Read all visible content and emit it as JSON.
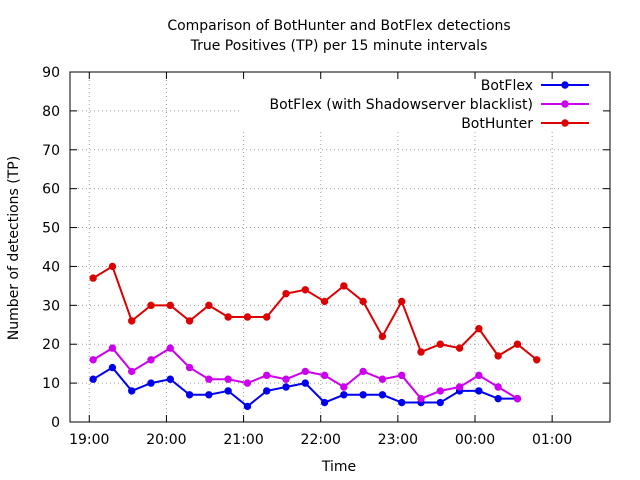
{
  "chart_data": {
    "type": "line",
    "title": "Comparison of BotHunter and BotFlex detections",
    "subtitle": "True Positives (TP) per 15 minute intervals",
    "xlabel": "Time",
    "ylabel": "Number of detections (TP)",
    "ylim": [
      0,
      90
    ],
    "yticks": [
      0,
      10,
      20,
      30,
      40,
      50,
      60,
      70,
      80,
      90
    ],
    "xticks": [
      "19:00",
      "20:00",
      "21:00",
      "22:00",
      "23:00",
      "00:00",
      "01:00"
    ],
    "grid": true,
    "legend": "top-right",
    "x": [
      "19:03",
      "19:18",
      "19:33",
      "19:48",
      "20:03",
      "20:18",
      "20:33",
      "20:48",
      "21:03",
      "21:18",
      "21:33",
      "21:48",
      "22:03",
      "22:18",
      "22:33",
      "22:48",
      "23:03",
      "23:18",
      "23:33",
      "23:48",
      "00:03",
      "00:18",
      "00:33",
      "00:48"
    ],
    "series": [
      {
        "name": "BotFlex",
        "color": "#0000ee",
        "values": [
          11,
          14,
          8,
          10,
          11,
          7,
          7,
          8,
          4,
          8,
          9,
          10,
          5,
          7,
          7,
          7,
          5,
          5,
          5,
          8,
          8,
          6,
          6,
          null
        ]
      },
      {
        "name": "BotFlex (with Shadowserver blacklist)",
        "color": "#cc00ee",
        "values": [
          16,
          19,
          13,
          16,
          19,
          14,
          11,
          11,
          10,
          12,
          11,
          13,
          12,
          9,
          13,
          11,
          12,
          6,
          8,
          9,
          12,
          9,
          6,
          null
        ]
      },
      {
        "name": "BotHunter",
        "color": "#dd0000",
        "values": [
          37,
          40,
          26,
          30,
          30,
          26,
          30,
          27,
          27,
          27,
          33,
          34,
          31,
          35,
          31,
          22,
          31,
          18,
          20,
          19,
          24,
          17,
          20,
          16
        ]
      }
    ]
  }
}
